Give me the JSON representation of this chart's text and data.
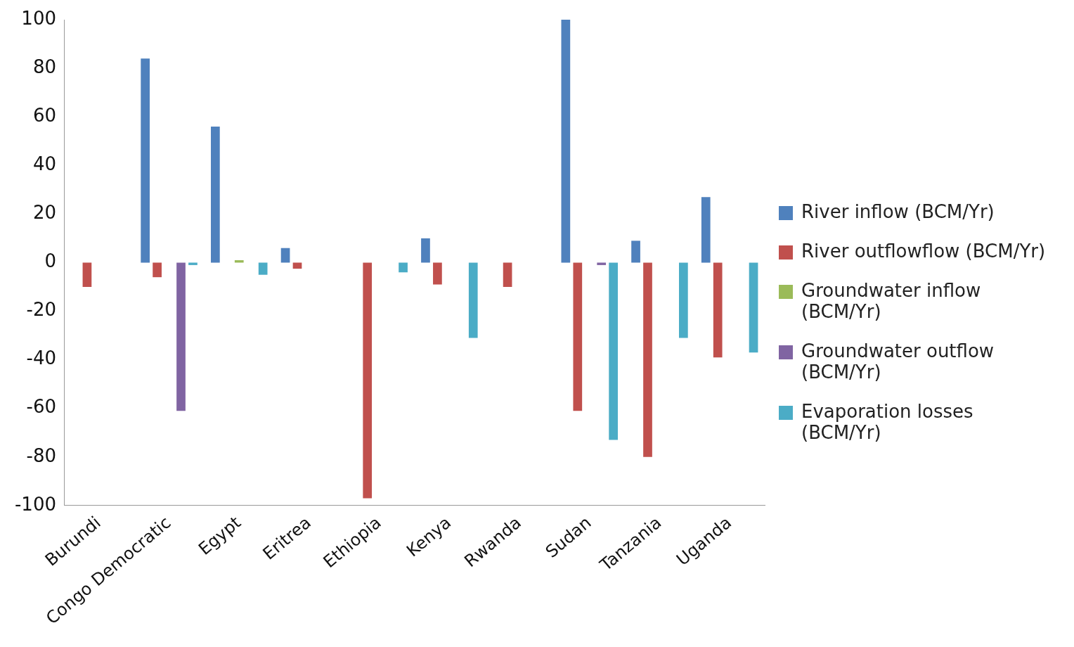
{
  "chart_data": {
    "type": "bar",
    "categories": [
      "Burundi",
      "Congo Democratic",
      "Egypt",
      "Eritrea",
      "Ethiopia",
      "Kenya",
      "Rwanda",
      "Sudan",
      "Tanzania",
      "Uganda"
    ],
    "series": [
      {
        "name": "River inflow (BCM/Yr)",
        "color": "#4f81bd",
        "values": [
          null,
          84,
          56,
          6,
          null,
          10,
          null,
          100,
          9,
          27
        ]
      },
      {
        "name": "River outflowflow (BCM/Yr)",
        "color": "#c0504d",
        "values": [
          -10,
          -6,
          null,
          -2.5,
          -97,
          -9,
          -10,
          -61,
          -80,
          -39
        ]
      },
      {
        "name": "Groundwater inflow (BCM/Yr)",
        "color": "#9bbb59",
        "values": [
          null,
          null,
          1,
          null,
          null,
          null,
          null,
          null,
          null,
          null
        ]
      },
      {
        "name": "Groundwater outflow (BCM/Yr)",
        "color": "#8064a2",
        "values": [
          null,
          -61,
          null,
          null,
          null,
          null,
          null,
          -1,
          null,
          null
        ]
      },
      {
        "name": "Evaporation losses (BCM/Yr)",
        "color": "#4bacc6",
        "values": [
          null,
          -1,
          -5,
          null,
          -4,
          -31,
          null,
          -73,
          -31,
          -37
        ]
      }
    ],
    "ylim": [
      -100,
      100
    ],
    "yticks": [
      -100,
      -80,
      -60,
      -40,
      -20,
      0,
      20,
      40,
      60,
      80,
      100
    ],
    "grid": false,
    "legend": "right"
  }
}
